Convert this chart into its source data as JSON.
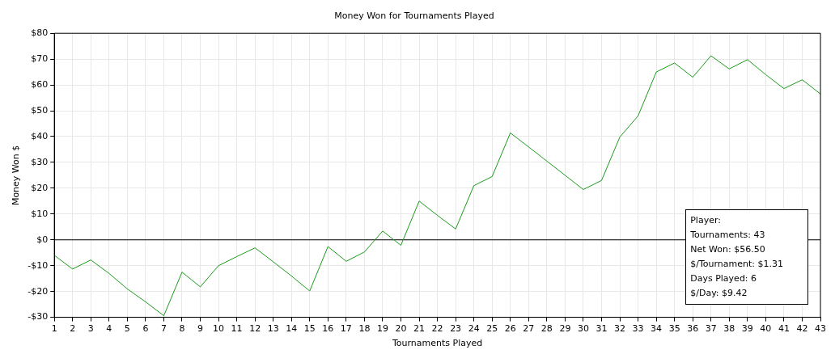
{
  "chart_data": {
    "type": "line",
    "title": "Money Won for Tournaments Played",
    "xlabel": "Tournaments Played",
    "ylabel": "Money Won $",
    "x": [
      1,
      2,
      3,
      4,
      5,
      6,
      7,
      8,
      9,
      10,
      11,
      12,
      13,
      14,
      15,
      16,
      17,
      18,
      19,
      20,
      21,
      22,
      23,
      24,
      25,
      26,
      27,
      28,
      29,
      30,
      31,
      32,
      33,
      34,
      35,
      36,
      37,
      38,
      39,
      40,
      41,
      42,
      43
    ],
    "series": [
      {
        "color": "#1a9a1a",
        "values": [
          -6,
          -11.3,
          -7.8,
          -13,
          -19,
          -24,
          -29.4,
          -12.5,
          -18.2,
          -10,
          -6.5,
          -3.1,
          -8.5,
          -14,
          -19.8,
          -2.6,
          -8.3,
          -4.7,
          3.4,
          -2.1,
          15,
          9.5,
          4.2,
          21,
          24.5,
          41.4,
          36,
          30.5,
          25,
          19.5,
          23,
          39.8,
          48,
          65,
          68.5,
          63,
          71.3,
          66.2,
          69.8,
          64,
          58.6,
          62,
          56.5
        ]
      }
    ],
    "xlim": [
      1,
      43
    ],
    "xticks": [
      1,
      2,
      3,
      4,
      5,
      6,
      7,
      8,
      9,
      10,
      11,
      12,
      13,
      14,
      15,
      16,
      17,
      18,
      19,
      20,
      21,
      22,
      23,
      24,
      25,
      26,
      27,
      28,
      29,
      30,
      31,
      32,
      33,
      34,
      35,
      36,
      37,
      38,
      39,
      40,
      41,
      42,
      43
    ],
    "ylim": [
      -30,
      80
    ],
    "yticks": [
      {
        "value": -30,
        "label": "-$30"
      },
      {
        "value": -20,
        "label": "-$20"
      },
      {
        "value": -10,
        "label": "-$10"
      },
      {
        "value": 0,
        "label": "$0"
      },
      {
        "value": 10,
        "label": "$10"
      },
      {
        "value": 20,
        "label": "$20"
      },
      {
        "value": 30,
        "label": "$30"
      },
      {
        "value": 40,
        "label": "$40"
      },
      {
        "value": 50,
        "label": "$50"
      },
      {
        "value": 60,
        "label": "$60"
      },
      {
        "value": 70,
        "label": "$70"
      },
      {
        "value": 80,
        "label": "$80"
      }
    ],
    "ref_lines": [
      {
        "axis": "y",
        "value": 0,
        "color": "#000000"
      }
    ],
    "annotations": [
      "Player:",
      "Tournaments: 43",
      "Net Won: $56.50",
      "$/Tournament: $1.31",
      "Days Played: 6",
      "$/Day: $9.42"
    ],
    "grid": true,
    "legend": false,
    "marker": "none",
    "line_style": "solid"
  }
}
